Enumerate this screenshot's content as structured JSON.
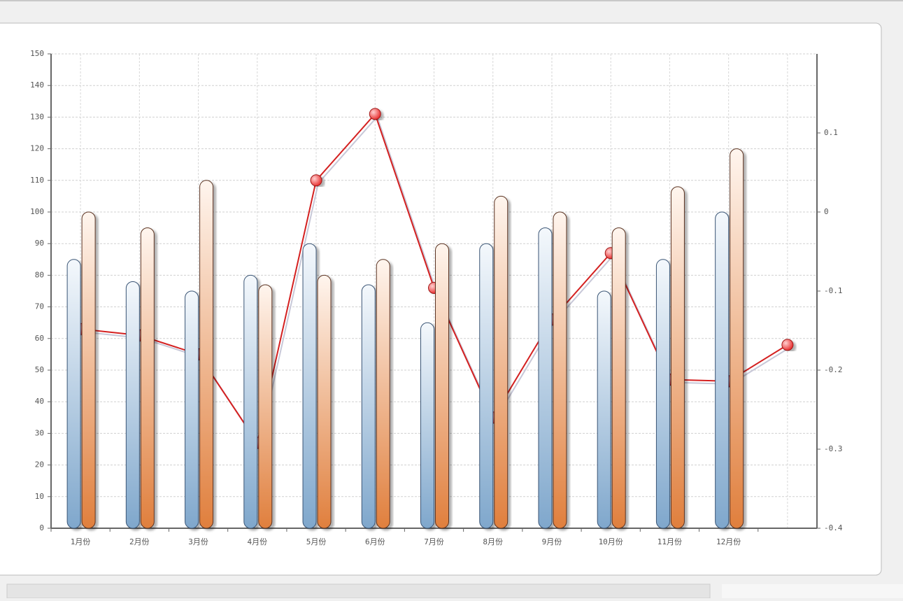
{
  "chart_data": {
    "type": "bar",
    "categories": [
      "1月份",
      "2月份",
      "3月份",
      "4月份",
      "5月份",
      "6月份",
      "7月份",
      "8月份",
      "9月份",
      "10月份",
      "11月份",
      "12月份",
      null
    ],
    "series": [
      {
        "type": "bar",
        "color": "#7fa7cc",
        "values": [
          85,
          78,
          75,
          80,
          90,
          77,
          65,
          90,
          95,
          75,
          85,
          100,
          null
        ]
      },
      {
        "type": "bar",
        "color": "#e07f3d",
        "values": [
          100,
          95,
          110,
          77,
          80,
          85,
          90,
          105,
          100,
          95,
          108,
          120,
          null
        ]
      },
      {
        "type": "line",
        "color": "#d42020",
        "values": [
          63,
          61,
          55,
          27,
          110,
          131,
          76,
          35,
          66,
          87,
          47,
          46.5,
          58
        ]
      }
    ],
    "ylim": [
      0,
      150
    ],
    "yticks": [
      0,
      10,
      20,
      30,
      40,
      50,
      60,
      70,
      80,
      90,
      100,
      110,
      120,
      130,
      140,
      150
    ],
    "y2lim": [
      -0.4,
      0.2
    ],
    "y2ticks": [
      -0.4,
      -0.3,
      -0.2,
      -0.1,
      0,
      0.1
    ],
    "grid": true
  }
}
